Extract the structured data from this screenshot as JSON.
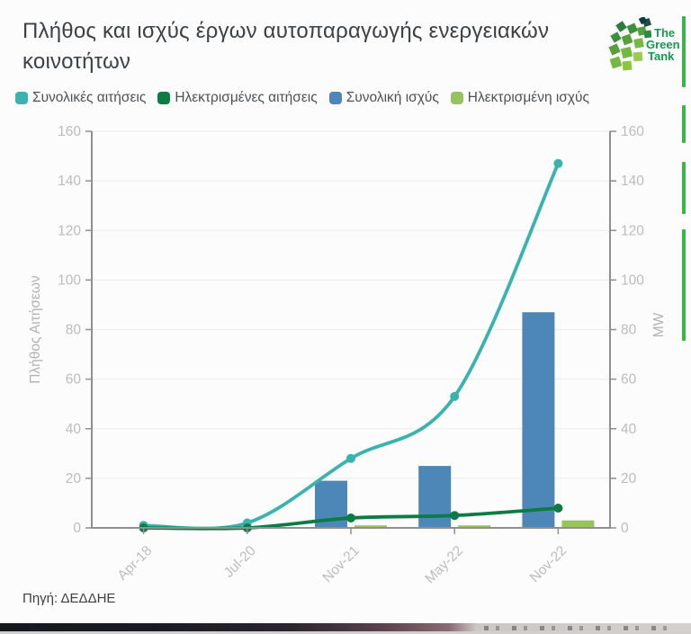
{
  "header": {
    "title": "Πλήθος και ισχύς έργων αυτοπαραγωγής ενεργειακών κοινοτήτων",
    "logo": {
      "line1": "The",
      "line2": "Green",
      "line3": "Tank"
    }
  },
  "legend": {
    "items": [
      {
        "label": "Συνολικές αιτήσεις",
        "color": "#3ab3b0"
      },
      {
        "label": "Ηλεκτρισμένες αιτήσεις",
        "color": "#0c7c45"
      },
      {
        "label": "Συνολική ισχύς",
        "color": "#4d87b8"
      },
      {
        "label": "Ηλεκτρισμένη ισχύς",
        "color": "#95c45f"
      }
    ]
  },
  "chart_data": {
    "type": "combo",
    "categories": [
      "Apr-18",
      "Jul-20",
      "Nov-21",
      "May-22",
      "Nov-22"
    ],
    "series": [
      {
        "name": "Συνολικές αιτήσεις",
        "type": "line",
        "axis": "left",
        "color": "#3ab3b0",
        "values": [
          1,
          2,
          28,
          53,
          147
        ]
      },
      {
        "name": "Ηλεκτρισμένες αιτήσεις",
        "type": "line",
        "axis": "left",
        "color": "#0c7c45",
        "values": [
          0,
          0,
          4,
          5,
          8
        ]
      },
      {
        "name": "Συνολική ισχύς",
        "type": "bar",
        "axis": "right",
        "color": "#4d87b8",
        "values": [
          0,
          0,
          19,
          25,
          87
        ]
      },
      {
        "name": "Ηλεκτρισμένη ισχύς",
        "type": "bar",
        "axis": "right",
        "color": "#95c45f",
        "values": [
          0,
          0,
          1,
          1,
          3
        ]
      }
    ],
    "title": "Πλήθος και ισχύς έργων αυτοπαραγωγής ενεργειακών κοινοτήτων",
    "ylabel_left": "Πλήθος Αιτήσεων",
    "ylabel_right": "MW",
    "ylim": [
      0,
      160
    ],
    "ytick_step": 20,
    "grid": true,
    "legend_position": "top",
    "axis_color": "#8f8f8f",
    "grid_color": "#ececec",
    "tick_label_color": "#bcbcbc"
  },
  "footer": {
    "source": "Πηγή: ΔΕΔΔΗΕ"
  }
}
